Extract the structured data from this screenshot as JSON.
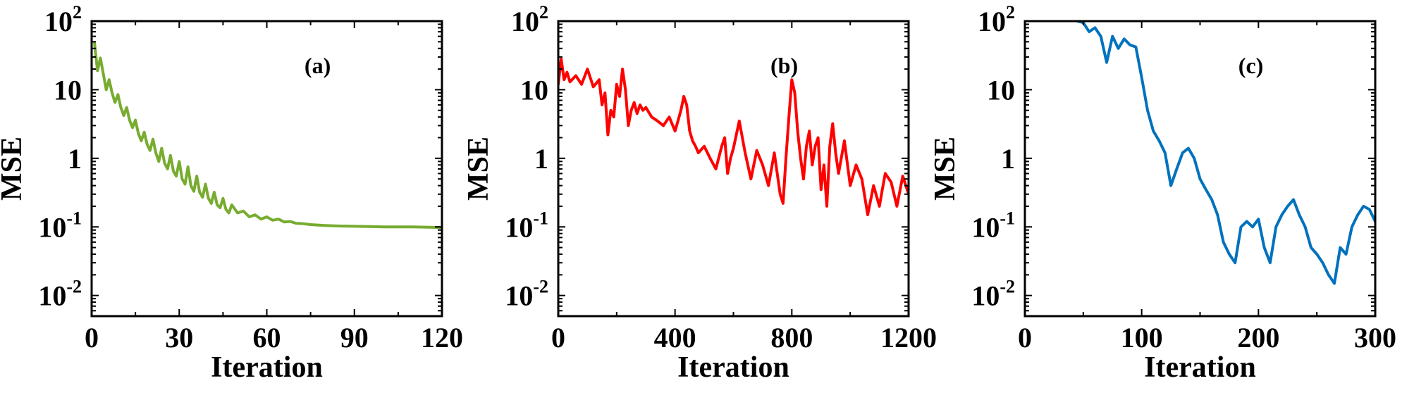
{
  "chart_data": [
    {
      "type": "line",
      "panel_label": "(a)",
      "xlabel": "Iteration",
      "ylabel": "MSE",
      "xscale": "linear",
      "yscale": "log",
      "xlim": [
        0,
        120
      ],
      "ylim": [
        0.005,
        100
      ],
      "xticks": [
        0,
        30,
        60,
        90,
        120
      ],
      "xtick_labels": [
        "0",
        "30",
        "60",
        "90",
        "120"
      ],
      "yticks": [
        0.01,
        0.1,
        1,
        10,
        100
      ],
      "ytick_labels": [
        {
          "base": "10",
          "exp": "-2"
        },
        {
          "base": "10",
          "exp": "-1"
        },
        {
          "base": "1",
          "exp": ""
        },
        {
          "base": "10",
          "exp": ""
        },
        {
          "base": "10",
          "exp": "2"
        }
      ],
      "series": [
        {
          "color": "#77ac30",
          "x": [
            1,
            2,
            3,
            4,
            5,
            6,
            7,
            8,
            9,
            10,
            11,
            12,
            13,
            14,
            15,
            16,
            17,
            18,
            19,
            20,
            21,
            22,
            23,
            24,
            25,
            26,
            27,
            28,
            29,
            30,
            31,
            32,
            33,
            34,
            35,
            36,
            37,
            38,
            39,
            40,
            41,
            42,
            43,
            44,
            45,
            46,
            47,
            48,
            50,
            52,
            54,
            56,
            58,
            60,
            62,
            64,
            66,
            68,
            70,
            72,
            75,
            80,
            85,
            90,
            95,
            100,
            110,
            120
          ],
          "y": [
            48,
            19,
            29,
            17,
            10,
            14,
            9,
            6.5,
            8.5,
            5.5,
            4.2,
            5.5,
            3.6,
            2.8,
            3.6,
            2.3,
            1.8,
            2.4,
            1.6,
            1.3,
            1.9,
            1.2,
            0.9,
            1.4,
            0.85,
            0.7,
            1.1,
            0.65,
            0.55,
            0.9,
            0.5,
            0.42,
            0.75,
            0.4,
            0.33,
            0.55,
            0.32,
            0.27,
            0.42,
            0.26,
            0.22,
            0.32,
            0.21,
            0.19,
            0.26,
            0.18,
            0.16,
            0.21,
            0.16,
            0.17,
            0.14,
            0.15,
            0.13,
            0.14,
            0.125,
            0.13,
            0.118,
            0.12,
            0.113,
            0.112,
            0.108,
            0.105,
            0.103,
            0.102,
            0.101,
            0.1,
            0.1,
            0.098
          ]
        }
      ]
    },
    {
      "type": "line",
      "panel_label": "(b)",
      "xlabel": "Iteration",
      "ylabel": "MSE",
      "xscale": "linear",
      "yscale": "log",
      "xlim": [
        0,
        1200
      ],
      "ylim": [
        0.005,
        100
      ],
      "xticks": [
        0,
        400,
        800,
        1200
      ],
      "xtick_labels": [
        "0",
        "400",
        "800",
        "1200"
      ],
      "yticks": [
        0.01,
        0.1,
        1,
        10,
        100
      ],
      "ytick_labels": [
        {
          "base": "10",
          "exp": "-2"
        },
        {
          "base": "10",
          "exp": "-1"
        },
        {
          "base": "1",
          "exp": ""
        },
        {
          "base": "10",
          "exp": ""
        },
        {
          "base": "10",
          "exp": "2"
        }
      ],
      "series": [
        {
          "color": "#ff0000",
          "x": [
            0,
            10,
            20,
            30,
            40,
            60,
            80,
            100,
            120,
            140,
            150,
            160,
            170,
            180,
            190,
            200,
            210,
            220,
            230,
            240,
            250,
            260,
            270,
            280,
            290,
            300,
            320,
            340,
            360,
            380,
            400,
            410,
            420,
            430,
            440,
            450,
            460,
            470,
            480,
            500,
            520,
            540,
            560,
            570,
            580,
            590,
            600,
            620,
            640,
            660,
            680,
            700,
            720,
            740,
            760,
            770,
            780,
            790,
            800,
            810,
            820,
            830,
            840,
            850,
            860,
            870,
            880,
            890,
            900,
            910,
            920,
            930,
            940,
            950,
            960,
            980,
            1000,
            1020,
            1040,
            1060,
            1080,
            1100,
            1110,
            1120,
            1140,
            1160,
            1180,
            1200
          ],
          "y": [
            12,
            28,
            14,
            18,
            13,
            16,
            12,
            20,
            11,
            14,
            6,
            9,
            2.2,
            5,
            4,
            12,
            8,
            20,
            10,
            3,
            5,
            6.5,
            4.5,
            6,
            5,
            5.5,
            4,
            3.5,
            3,
            4,
            2.5,
            3.5,
            5,
            8,
            6,
            2.5,
            1.8,
            1.5,
            1.2,
            1.5,
            1.0,
            0.7,
            1.5,
            2.0,
            0.6,
            1.0,
            1.4,
            3.5,
            1.2,
            0.5,
            1.3,
            0.8,
            0.4,
            1.2,
            0.3,
            0.22,
            1.0,
            4.0,
            14,
            9,
            2.5,
            1.0,
            0.5,
            1.5,
            2.5,
            0.8,
            1.5,
            2.0,
            0.35,
            0.8,
            0.2,
            1.5,
            3.2,
            1.2,
            0.6,
            1.8,
            0.4,
            0.8,
            0.5,
            0.15,
            0.4,
            0.2,
            0.35,
            0.6,
            0.45,
            0.2,
            0.55,
            0.3
          ]
        }
      ]
    },
    {
      "type": "line",
      "panel_label": "(c)",
      "xlabel": "Iteration",
      "ylabel": "MSE",
      "xscale": "linear",
      "yscale": "log",
      "xlim": [
        0,
        300
      ],
      "ylim": [
        0.005,
        100
      ],
      "xticks": [
        0,
        100,
        200,
        300
      ],
      "xtick_labels": [
        "0",
        "100",
        "200",
        "300"
      ],
      "yticks": [
        0.01,
        0.1,
        1,
        10,
        100
      ],
      "ytick_labels": [
        {
          "base": "10",
          "exp": "-2"
        },
        {
          "base": "10",
          "exp": "-1"
        },
        {
          "base": "1",
          "exp": ""
        },
        {
          "base": "10",
          "exp": ""
        },
        {
          "base": "10",
          "exp": "2"
        }
      ],
      "series": [
        {
          "color": "#0072bd",
          "x": [
            0,
            10,
            20,
            30,
            40,
            45,
            50,
            55,
            60,
            65,
            70,
            75,
            80,
            85,
            90,
            95,
            100,
            105,
            110,
            115,
            120,
            125,
            130,
            135,
            140,
            145,
            150,
            155,
            160,
            165,
            170,
            175,
            180,
            185,
            190,
            195,
            200,
            205,
            210,
            215,
            220,
            225,
            230,
            235,
            240,
            245,
            250,
            255,
            260,
            265,
            270,
            275,
            280,
            285,
            290,
            295,
            300
          ],
          "y": [
            100,
            130,
            150,
            140,
            120,
            100,
            95,
            70,
            80,
            60,
            25,
            60,
            40,
            55,
            45,
            42,
            15,
            5,
            2.5,
            1.8,
            1.2,
            0.4,
            0.7,
            1.2,
            1.4,
            1.0,
            0.5,
            0.35,
            0.25,
            0.15,
            0.06,
            0.04,
            0.03,
            0.1,
            0.12,
            0.1,
            0.13,
            0.05,
            0.03,
            0.1,
            0.15,
            0.2,
            0.25,
            0.15,
            0.1,
            0.05,
            0.04,
            0.03,
            0.02,
            0.015,
            0.05,
            0.04,
            0.1,
            0.15,
            0.2,
            0.18,
            0.12
          ]
        }
      ]
    }
  ]
}
